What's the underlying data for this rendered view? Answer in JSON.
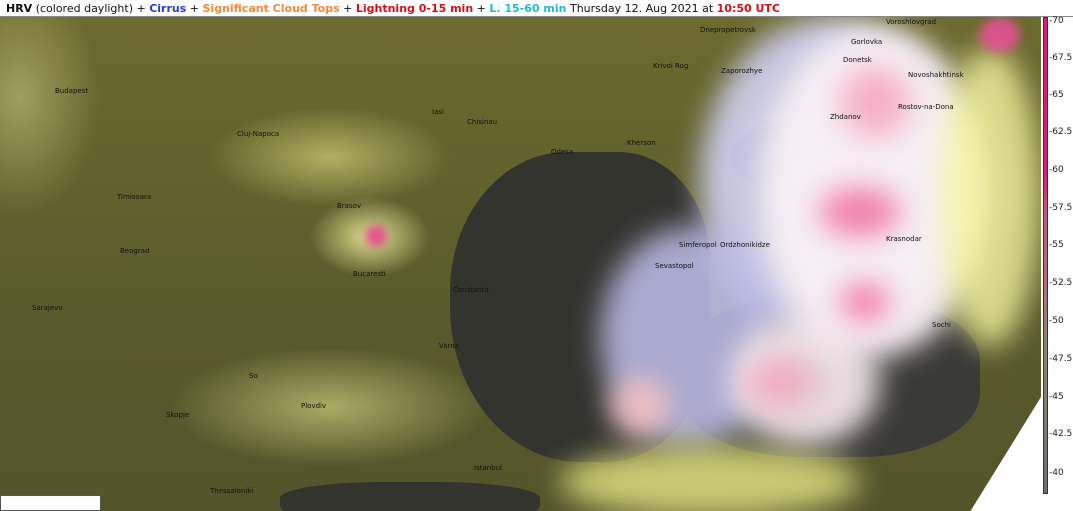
{
  "title": {
    "hrv": "HRV",
    "hrv_desc": " (colored daylight) + ",
    "cirrus": "Cirrus",
    "plus1": " + ",
    "sct": "Significant Cloud Tops",
    "plus2": " + ",
    "lightning": "Lightning 0-15 min",
    "plus3": " + ",
    "l15": "L. 15-60 min",
    "date": " Thursday 12. Aug 2021 at ",
    "time": "10:50 UTC"
  },
  "colors": {
    "cirrus": "#2a3fc4",
    "sct": "#f08a3c",
    "lightning": "#d0101c",
    "l15": "#22b8d0",
    "time": "#d0101c",
    "colorbar_top": "#d81d78"
  },
  "colorbar": {
    "ticks": [
      "-70",
      "-67.5",
      "-65",
      "-62.5",
      "-60",
      "-57.5",
      "-55",
      "-52.5",
      "-50",
      "-47.5",
      "-45",
      "-42.5",
      "-40"
    ]
  },
  "cities": [
    "Voroshlovgrad",
    "Dnepropetrovsk",
    "Gorlovka",
    "Donetsk",
    "Krivoi Rog",
    "Zaporozhye",
    "Novoshakhtinsk",
    "Budapest",
    "Rostov-na-Dona",
    "Iasi",
    "Zhdanov",
    "Chisinau",
    "Cluj-Napoca",
    "Kherson",
    "Odesa",
    "Timisoara",
    "Brasov",
    "Krasnodar",
    "Simferopol",
    "Ordzhonikidze",
    "Beograd",
    "Sevastopol",
    "Bucaresti",
    "Constanta",
    "Sarajevo",
    "Sochi",
    "Varna",
    "So",
    "Plovdiv",
    "Skopje",
    "Thessaloniki",
    "Istanbul"
  ]
}
